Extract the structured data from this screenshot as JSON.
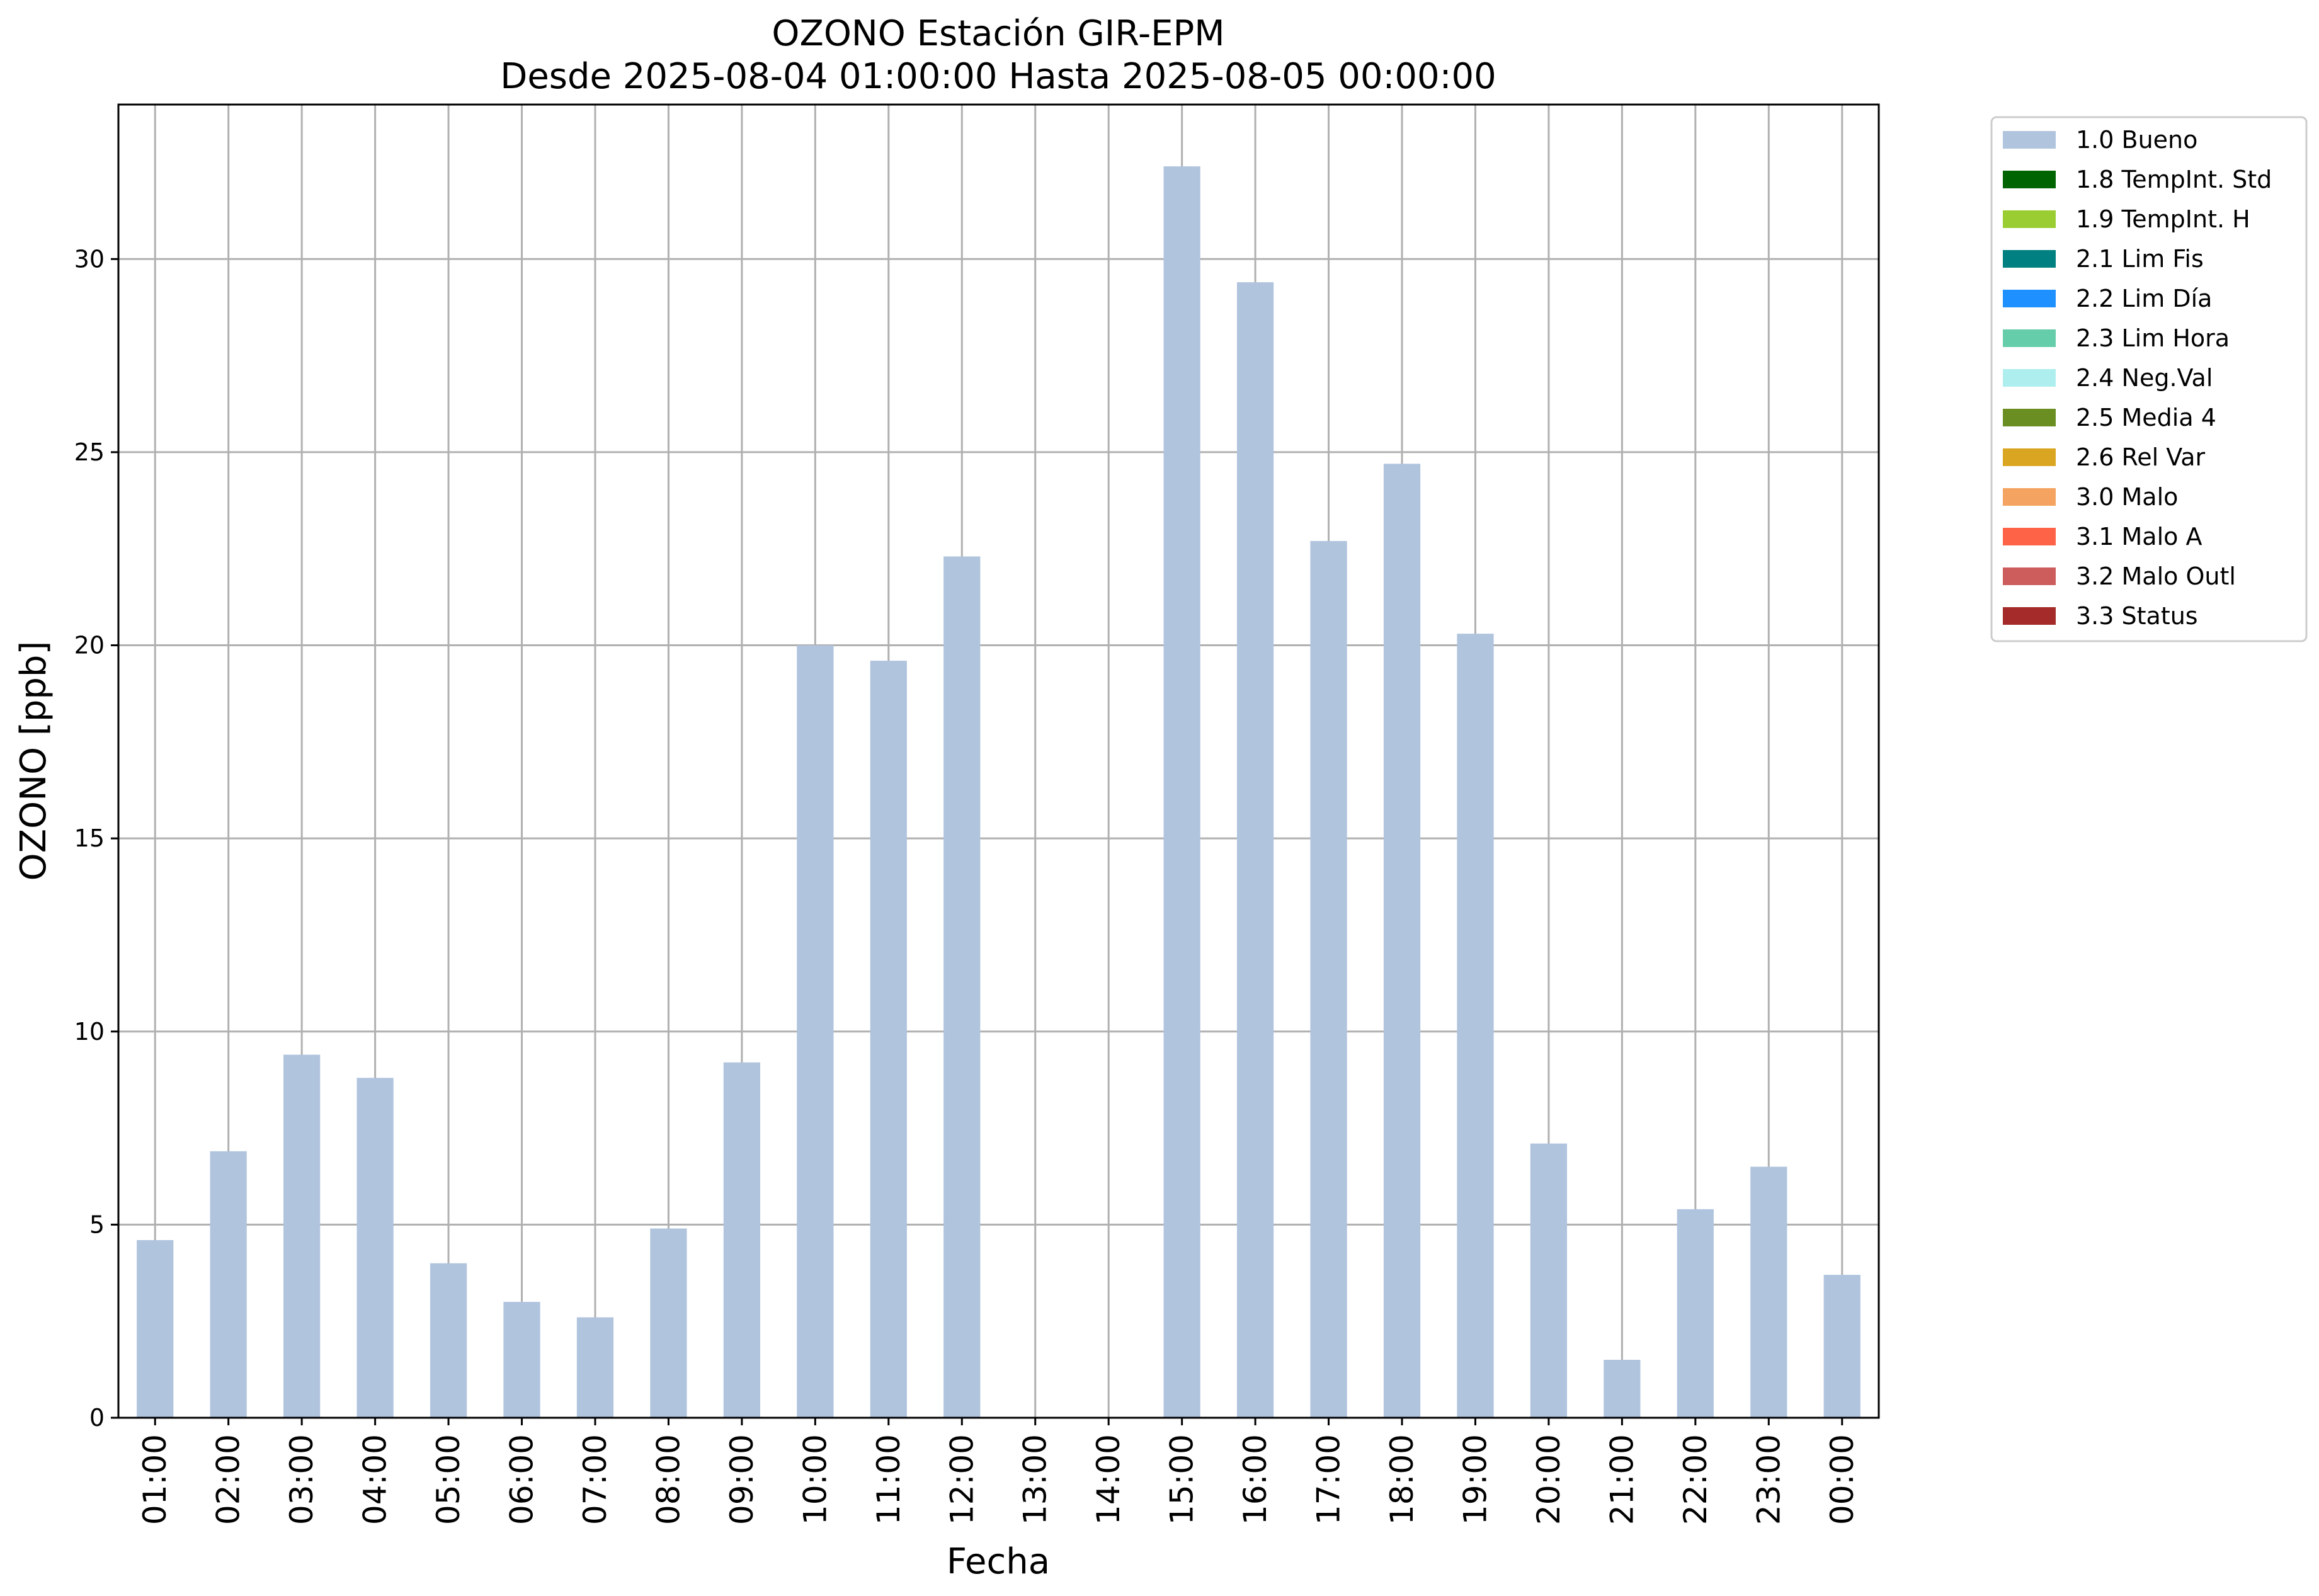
{
  "chart_data": {
    "type": "bar",
    "title": "OZONO Estación GIR-EPM",
    "subtitle": "Desde 2025-08-04 01:00:00 Hasta 2025-08-05 00:00:00",
    "xlabel": "Fecha",
    "ylabel": "OZONO [ppb]",
    "ylim": [
      0,
      34
    ],
    "yticks": [
      0,
      5,
      10,
      15,
      20,
      25,
      30
    ],
    "grid": true,
    "legend_position": "outside-top-right",
    "categories": [
      "01:00",
      "02:00",
      "03:00",
      "04:00",
      "05:00",
      "06:00",
      "07:00",
      "08:00",
      "09:00",
      "10:00",
      "11:00",
      "12:00",
      "13:00",
      "14:00",
      "15:00",
      "16:00",
      "17:00",
      "18:00",
      "19:00",
      "20:00",
      "21:00",
      "22:00",
      "23:00",
      "00:00"
    ],
    "series": [
      {
        "name": "1.0 Bueno",
        "color": "#b0c4de",
        "values": [
          4.6,
          6.9,
          9.4,
          8.8,
          4.0,
          3.0,
          2.6,
          4.9,
          9.2,
          20.0,
          19.6,
          22.3,
          null,
          null,
          32.4,
          29.4,
          22.7,
          24.7,
          20.3,
          7.1,
          1.5,
          5.4,
          6.5,
          3.7
        ]
      }
    ],
    "legend": [
      {
        "label": "1.0 Bueno",
        "color": "#b0c4de"
      },
      {
        "label": "1.8 TempInt. Std",
        "color": "#006400"
      },
      {
        "label": "1.9 TempInt. H",
        "color": "#9acd32"
      },
      {
        "label": "2.1 Lim Fis",
        "color": "#008080"
      },
      {
        "label": "2.2 Lim Día",
        "color": "#1e90ff"
      },
      {
        "label": "2.3 Lim Hora",
        "color": "#66cdaa"
      },
      {
        "label": "2.4 Neg.Val",
        "color": "#afeeee"
      },
      {
        "label": "2.5 Media 4",
        "color": "#6b8e23"
      },
      {
        "label": "2.6 Rel Var",
        "color": "#daa520"
      },
      {
        "label": "3.0 Malo",
        "color": "#f4a460"
      },
      {
        "label": "3.1 Malo A",
        "color": "#ff6347"
      },
      {
        "label": "3.2 Malo Outl",
        "color": "#cd5c5c"
      },
      {
        "label": "3.3 Status",
        "color": "#a52a2a"
      }
    ]
  }
}
